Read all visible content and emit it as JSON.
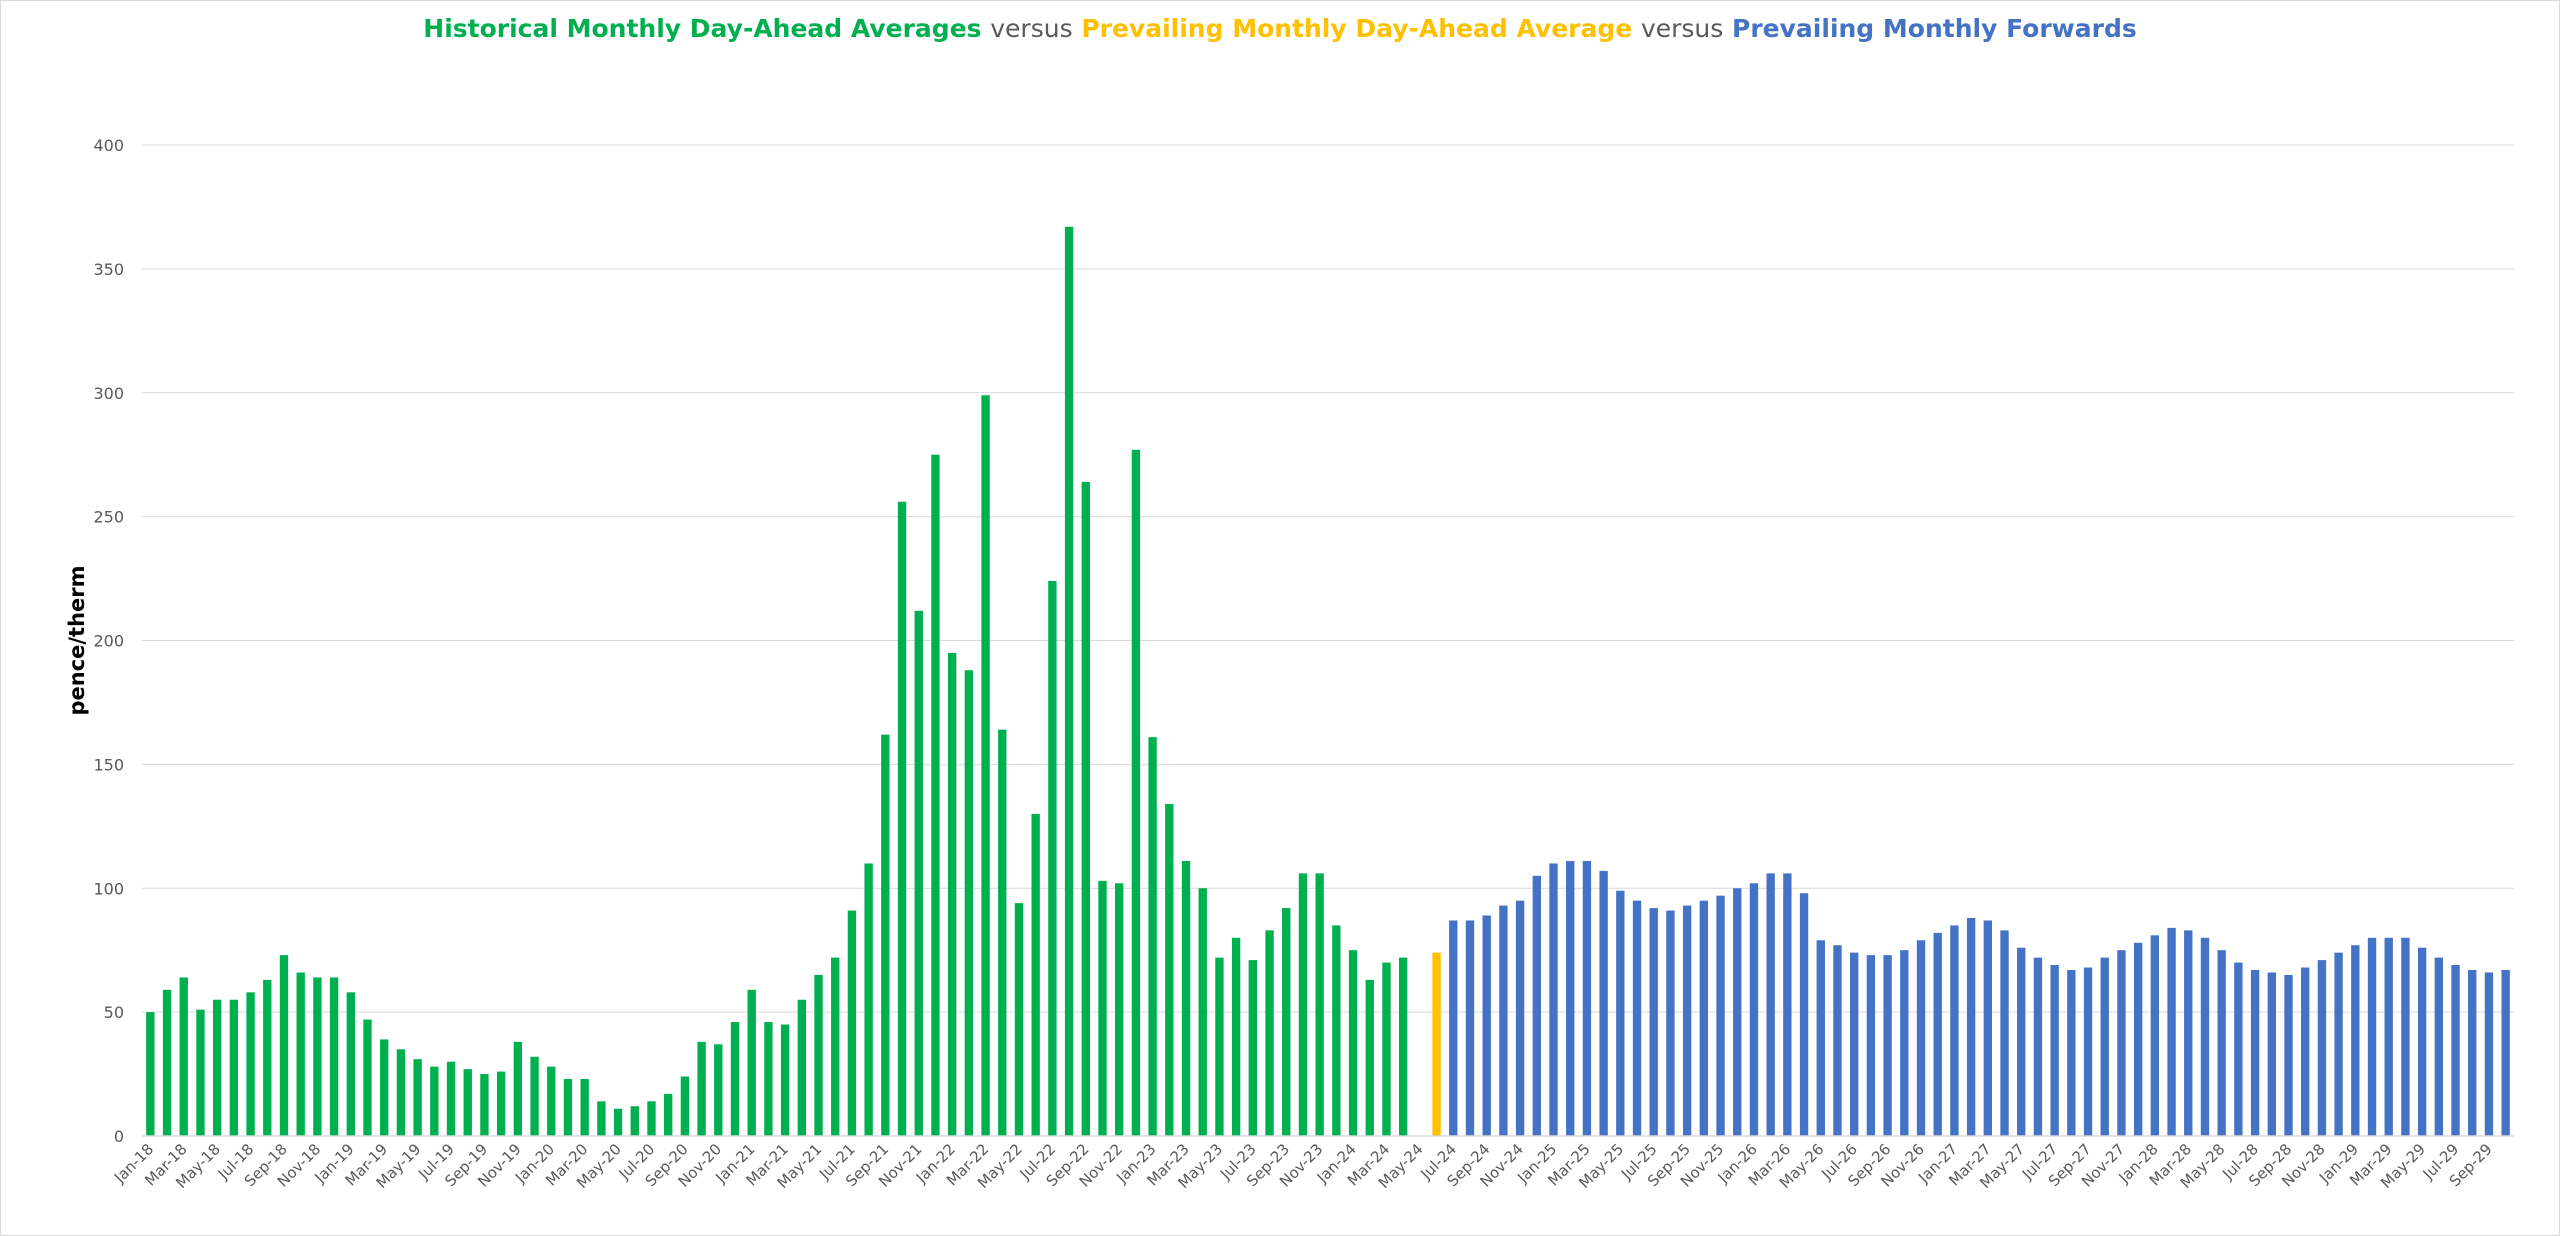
{
  "title": {
    "part1": "Historical Monthly Day-Ahead Averages",
    "versus1": "versus",
    "part2": "Prevailing Monthly Day-Ahead Average",
    "versus2": "versus",
    "part3": "Prevailing Monthly Forwards"
  },
  "colors": {
    "historical": "#00b050",
    "prevailing_day_ahead": "#ffc000",
    "forwards": "#4472c4",
    "title_versus": "#595959",
    "grid": "#d9d9d9"
  },
  "chart_data": {
    "type": "bar",
    "ylabel": "pence/therm",
    "xlabel": "",
    "ylim": [
      0,
      400
    ],
    "yticks": [
      0,
      50,
      100,
      150,
      200,
      250,
      300,
      350,
      400
    ],
    "grid": true,
    "start_month": "Jan-18",
    "x_tick_labels": [
      "Jan-18",
      "Mar-18",
      "May-18",
      "Jul-18",
      "Sep-18",
      "Nov-18",
      "Jan-19",
      "Mar-19",
      "May-19",
      "Jul-19",
      "Sep-19",
      "Nov-19",
      "Jan-20",
      "Mar-20",
      "May-20",
      "Jul-20",
      "Sep-20",
      "Nov-20",
      "Jan-21",
      "Mar-21",
      "May-21",
      "Jul-21",
      "Sep-21",
      "Nov-21",
      "Jan-22",
      "Mar-22",
      "May-22",
      "Jul-22",
      "Sep-22",
      "Nov-22",
      "Jan-23",
      "Mar-23",
      "May-23",
      "Jul-23",
      "Sep-23",
      "Nov-23",
      "Jan-24",
      "Mar-24",
      "May-24",
      "Jul-24",
      "Sep-24",
      "Nov-24",
      "Jan-25",
      "Mar-25",
      "May-25",
      "Jul-25",
      "Sep-25",
      "Nov-25",
      "Jan-26",
      "Mar-26",
      "May-26",
      "Jul-26",
      "Sep-26",
      "Nov-26",
      "Jan-27",
      "Mar-27",
      "May-27",
      "Jul-27",
      "Sep-27",
      "Nov-27",
      "Jan-28",
      "Mar-28",
      "May-28",
      "Jul-28",
      "Sep-28",
      "Nov-28",
      "Jan-29",
      "Mar-29",
      "May-29",
      "Jul-29",
      "Sep-29"
    ],
    "series": [
      {
        "name": "Historical Monthly Day-Ahead Averages",
        "color": "#00b050",
        "start": "Jan-18",
        "values": [
          50,
          59,
          64,
          51,
          55,
          55,
          58,
          63,
          73,
          66,
          64,
          64,
          58,
          47,
          39,
          35,
          31,
          28,
          30,
          27,
          25,
          26,
          38,
          32,
          28,
          23,
          23,
          14,
          11,
          12,
          14,
          17,
          24,
          38,
          37,
          46,
          59,
          46,
          45,
          55,
          65,
          72,
          91,
          110,
          162,
          256,
          212,
          275,
          195,
          188,
          299,
          164,
          94,
          130,
          224,
          367,
          264,
          103,
          102,
          277,
          161,
          134,
          111,
          100,
          72,
          80,
          71,
          83,
          92,
          106,
          106,
          85,
          75,
          63,
          70,
          72
        ]
      },
      {
        "name": "Prevailing Monthly Day-Ahead Average",
        "color": "#ffc000",
        "start": "Jun-24",
        "values": [
          74
        ]
      },
      {
        "name": "Prevailing Monthly Forwards",
        "color": "#4472c4",
        "start": "Jul-24",
        "values": [
          87,
          87,
          89,
          93,
          95,
          105,
          110,
          111,
          111,
          107,
          99,
          95,
          92,
          91,
          93,
          95,
          97,
          100,
          102,
          106,
          106,
          98,
          79,
          77,
          74,
          73,
          73,
          75,
          79,
          82,
          85,
          88,
          87,
          83,
          76,
          72,
          69,
          67,
          68,
          72,
          75,
          78,
          81,
          84,
          83,
          80,
          75,
          70,
          67,
          66,
          65,
          68,
          71,
          74,
          77,
          80,
          80,
          80,
          76,
          72,
          69,
          67,
          66,
          67
        ]
      }
    ]
  }
}
